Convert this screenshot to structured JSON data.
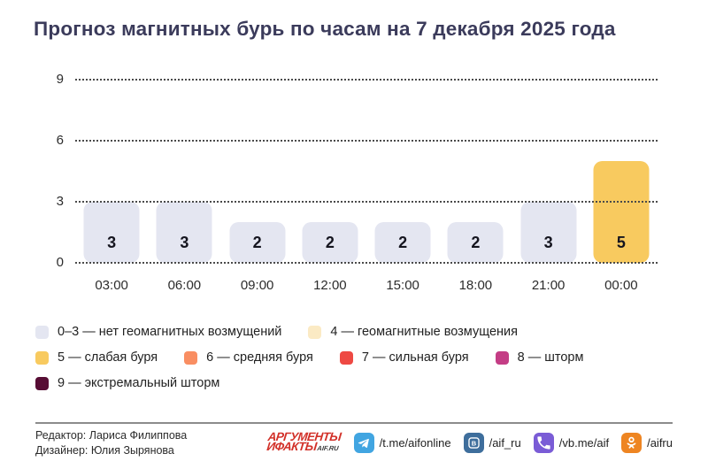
{
  "title": "Прогноз магнитных бурь по часам на 7 декабря 2025 года",
  "chart_data": {
    "type": "bar",
    "categories": [
      "03:00",
      "06:00",
      "09:00",
      "12:00",
      "15:00",
      "18:00",
      "21:00",
      "00:00"
    ],
    "values": [
      3,
      3,
      2,
      2,
      2,
      2,
      3,
      5
    ],
    "title": "Прогноз магнитных бурь по часам на 7 декабря 2025 года",
    "xlabel": "",
    "ylabel": "",
    "ylim": [
      0,
      9
    ],
    "yticks": [
      0,
      3,
      6,
      9
    ],
    "grid": "horizontal-dotted",
    "bar_label_position": "inside-bottom",
    "value_colors": {
      "0-3": "#e4e6f1",
      "4": "#fbeac4",
      "5": "#f8ca5f",
      "6": "#f98e62",
      "7": "#ee4943",
      "8": "#c43d85",
      "9": "#570d34"
    }
  },
  "legend": {
    "rows": [
      [
        {
          "color": "#e4e6f1",
          "label": "0–3 — нет геомагнитных возмущений"
        },
        {
          "color": "#fbeac4",
          "label": "4 — геомагнитные возмущения"
        }
      ],
      [
        {
          "color": "#f8ca5f",
          "label": "5 — слабая буря"
        },
        {
          "color": "#f98e62",
          "label": "6 — средняя буря"
        },
        {
          "color": "#ee4943",
          "label": "7 — сильная буря"
        },
        {
          "color": "#c43d85",
          "label": "8 — шторм"
        }
      ],
      [
        {
          "color": "#570d34",
          "label": "9 — экстремальный шторм"
        }
      ]
    ]
  },
  "footer": {
    "credits": [
      "Редактор: Лариса Филиппова",
      "Дизайнер: Юлия Зырянова"
    ],
    "logo": {
      "line1": "АРГУМЕНТЫ",
      "line2": "ИФАКТЫ",
      "suffix": "AIF.RU",
      "color": "#d23129"
    },
    "socials": [
      {
        "name": "telegram",
        "icon": "telegram-icon",
        "handle": "/t.me/aifonline",
        "color": "#41a5e1"
      },
      {
        "name": "vk",
        "icon": "vk-icon",
        "handle": "/aif_ru",
        "color": "#3e6e9c"
      },
      {
        "name": "viber",
        "icon": "viber-icon",
        "handle": "/vb.me/aif",
        "color": "#7a5cd6"
      },
      {
        "name": "ok",
        "icon": "ok-icon",
        "handle": "/aifru",
        "color": "#ee8522"
      }
    ]
  }
}
